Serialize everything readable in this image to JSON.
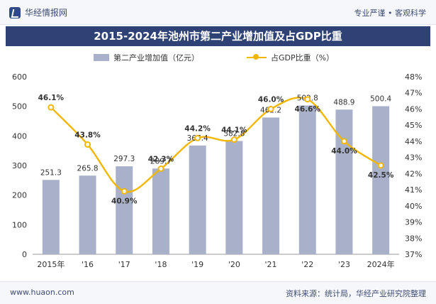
{
  "header": {
    "brand": "华经情报网",
    "tagline": "专业严谨 • 客观科学"
  },
  "title": "2015-2024年池州市第二产业增加值及占GDP比重",
  "legend": {
    "bar": "第二产业增加值（亿元）",
    "line": "占GDP比重（%）"
  },
  "footer": {
    "site": "www.huaon.com",
    "source": "资料来源：统计局，华经产业研究院整理"
  },
  "colors": {
    "bar": "#a8b1c9",
    "line": "#f2b705",
    "title_bg": "#2f4275"
  },
  "chart_data": {
    "type": "bar",
    "categories": [
      "2015年",
      "'16",
      "'17",
      "'18",
      "'19",
      "'20",
      "'21",
      "'22",
      "'23",
      "2024年"
    ],
    "series": [
      {
        "name": "第二产业增加值（亿元）",
        "type": "bar",
        "axis": "left",
        "values": [
          251.3,
          265.8,
          297.3,
          289.7,
          367.4,
          382.8,
          462.2,
          502.8,
          488.9,
          500.4
        ]
      },
      {
        "name": "占GDP比重（%）",
        "type": "line",
        "axis": "right",
        "values": [
          46.1,
          43.8,
          40.9,
          42.3,
          44.2,
          44.1,
          46.0,
          46.6,
          44.0,
          42.5
        ],
        "labels": [
          "46.1%",
          "43.8%",
          "40.9%",
          "42.3%",
          "44.2%",
          "44.1%",
          "46.0%",
          "46.6%",
          "44.0%",
          "42.5%"
        ]
      }
    ],
    "y_left": {
      "ylim": [
        0,
        600
      ],
      "ticks": [
        0,
        100,
        200,
        300,
        400,
        500,
        600
      ]
    },
    "y_right": {
      "ylim": [
        37,
        48
      ],
      "ticks": [
        "37%",
        "38%",
        "39%",
        "40%",
        "41%",
        "42%",
        "43%",
        "44%",
        "45%",
        "46%",
        "47%",
        "48%"
      ]
    },
    "legend_position": "top"
  }
}
